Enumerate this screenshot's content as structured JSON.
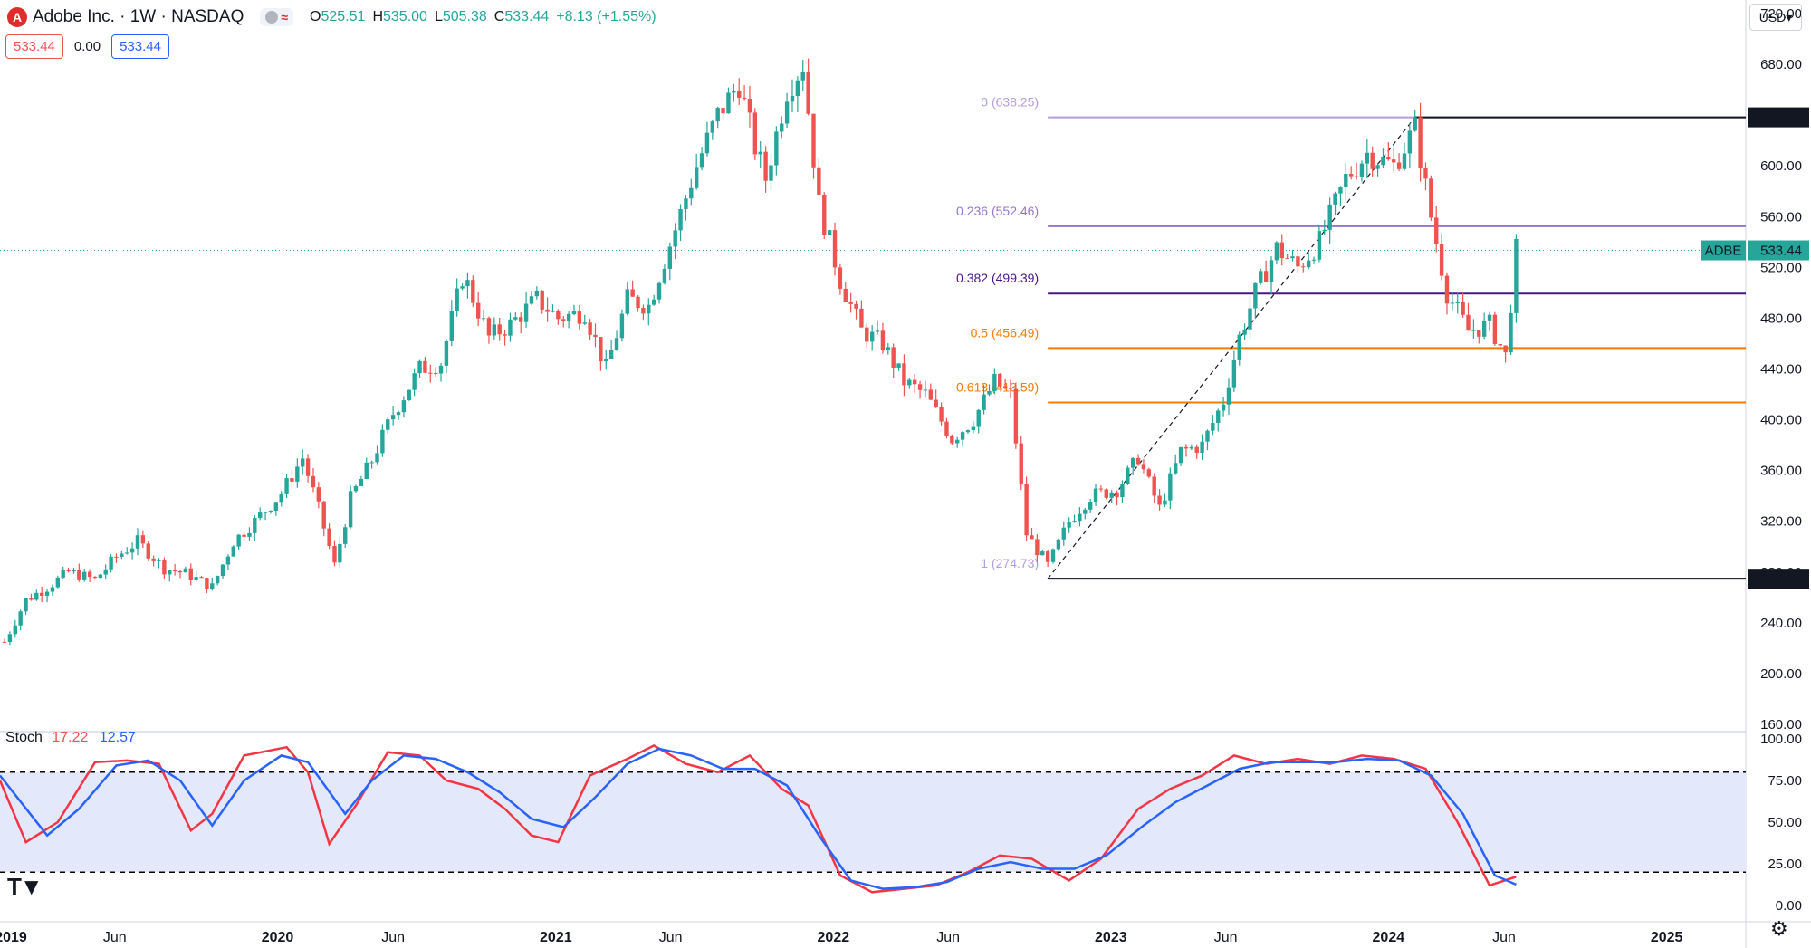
{
  "header": {
    "logo": "A",
    "title": "Adobe Inc. · 1W · NASDAQ",
    "wave": "≈",
    "open_label": "O",
    "open": "525.51",
    "high_label": "H",
    "high": "535.00",
    "low_label": "L",
    "low": "505.38",
    "close_label": "C",
    "close": "533.44",
    "change": "+8.13 (+1.55%)"
  },
  "price_boxes": {
    "left": "533.44",
    "middle": "0.00",
    "right": "533.44"
  },
  "currency": "USD",
  "stoch_legend": {
    "name": "Stoch",
    "k": "17.22",
    "d": "12.57"
  },
  "colors": {
    "up": "#26a69a",
    "down": "#ef5350",
    "k_line": "#f23645",
    "d_line": "#2962ff",
    "stoch_band": "#e3e9fb"
  },
  "icons": {
    "logo": "adobe-logo-icon",
    "settings": "gear-icon",
    "brand": "tradingview-logo-icon"
  },
  "chart_data": [
    {
      "type": "candlestick",
      "symbol_label": "ADBE",
      "last_price": "533.44",
      "ylim": [
        160,
        720
      ],
      "y_ticks": [
        "720.00",
        "680.00",
        "640.00",
        "600.00",
        "560.00",
        "520.00",
        "480.00",
        "440.00",
        "400.00",
        "360.00",
        "320.00",
        "280.00",
        "240.00",
        "200.00",
        "160.00"
      ],
      "x_ticks": [
        "2019",
        "Jun",
        "2020",
        "Jun",
        "2021",
        "Jun",
        "2022",
        "Jun",
        "2023",
        "Jun",
        "2024",
        "Jun",
        "2025"
      ],
      "x_range": [
        "2019-01-01",
        "2025-04-15"
      ],
      "fib_levels": [
        {
          "label": "0 (638.25)",
          "value": 638.25,
          "color": "#b39ddb"
        },
        {
          "label": "0.236 (552.46)",
          "value": 552.46,
          "color": "#9575cd"
        },
        {
          "label": "0.382 (499.39)",
          "value": 499.39,
          "color": "#4a148c"
        },
        {
          "label": "0.5 (456.49)",
          "value": 456.49,
          "color": "#f57c00"
        },
        {
          "label": "0.618 (413.59)",
          "value": 413.59,
          "color": "#f57c00"
        },
        {
          "label": "1 (274.73)",
          "value": 274.73,
          "color": "#b39ddb"
        }
      ],
      "axis_badges": [
        {
          "label": "638.25",
          "value": 638.25
        },
        {
          "label": "274.73",
          "value": 274.73
        }
      ],
      "fib_anchor": {
        "from_date": "2022-10-10",
        "from_value": 274.73,
        "to_date": "2024-02-05",
        "to_value": 638.25
      },
      "weekly_close": [
        [
          "2019-01-07",
          225
        ],
        [
          "2019-02-04",
          258
        ],
        [
          "2019-03-04",
          268
        ],
        [
          "2019-04-01",
          280
        ],
        [
          "2019-05-06",
          274
        ],
        [
          "2019-06-03",
          292
        ],
        [
          "2019-07-01",
          304
        ],
        [
          "2019-08-05",
          283
        ],
        [
          "2019-09-02",
          279
        ],
        [
          "2019-10-07",
          268
        ],
        [
          "2019-11-04",
          304
        ],
        [
          "2019-12-02",
          320
        ],
        [
          "2020-01-06",
          342
        ],
        [
          "2020-02-03",
          370
        ],
        [
          "2020-02-24",
          330
        ],
        [
          "2020-03-16",
          285
        ],
        [
          "2020-04-06",
          338
        ],
        [
          "2020-05-04",
          368
        ],
        [
          "2020-06-01",
          405
        ],
        [
          "2020-07-06",
          440
        ],
        [
          "2020-08-03",
          445
        ],
        [
          "2020-09-01",
          515
        ],
        [
          "2020-10-05",
          465
        ],
        [
          "2020-11-02",
          475
        ],
        [
          "2020-12-07",
          495
        ],
        [
          "2021-01-04",
          480
        ],
        [
          "2021-02-08",
          485
        ],
        [
          "2021-03-08",
          440
        ],
        [
          "2021-04-05",
          495
        ],
        [
          "2021-05-03",
          490
        ],
        [
          "2021-06-07",
          550
        ],
        [
          "2021-07-05",
          600
        ],
        [
          "2021-08-02",
          640
        ],
        [
          "2021-08-30",
          665
        ],
        [
          "2021-09-20",
          615
        ],
        [
          "2021-10-04",
          590
        ],
        [
          "2021-11-01",
          660
        ],
        [
          "2021-11-22",
          680
        ],
        [
          "2021-12-13",
          570
        ],
        [
          "2022-01-10",
          510
        ],
        [
          "2022-02-07",
          470
        ],
        [
          "2022-03-07",
          460
        ],
        [
          "2022-04-04",
          430
        ],
        [
          "2022-05-02",
          420
        ],
        [
          "2022-06-06",
          385
        ],
        [
          "2022-07-04",
          400
        ],
        [
          "2022-08-01",
          430
        ],
        [
          "2022-08-22",
          420
        ],
        [
          "2022-09-12",
          310
        ],
        [
          "2022-10-10",
          285
        ],
        [
          "2022-11-07",
          320
        ],
        [
          "2022-12-05",
          340
        ],
        [
          "2023-01-09",
          345
        ],
        [
          "2023-02-06",
          370
        ],
        [
          "2023-03-06",
          330
        ],
        [
          "2023-04-03",
          375
        ],
        [
          "2023-05-01",
          380
        ],
        [
          "2023-05-29",
          415
        ],
        [
          "2023-06-19",
          465
        ],
        [
          "2023-07-10",
          500
        ],
        [
          "2023-08-07",
          535
        ],
        [
          "2023-09-04",
          520
        ],
        [
          "2023-10-02",
          540
        ],
        [
          "2023-11-06",
          590
        ],
        [
          "2023-12-04",
          610
        ],
        [
          "2024-01-08",
          600
        ],
        [
          "2024-02-05",
          630
        ],
        [
          "2024-02-26",
          560
        ],
        [
          "2024-03-18",
          500
        ],
        [
          "2024-04-15",
          470
        ],
        [
          "2024-05-13",
          475
        ],
        [
          "2024-06-03",
          450
        ],
        [
          "2024-06-17",
          533.44
        ]
      ]
    },
    {
      "type": "line",
      "title": "Stoch",
      "ylim": [
        0,
        100
      ],
      "y_ticks": [
        "100.00",
        "75.00",
        "50.00",
        "25.00",
        "0.00"
      ],
      "band": [
        20,
        80
      ],
      "series": [
        {
          "name": "17.22",
          "color": "#f23645",
          "points": [
            [
              "2019-01-01",
              75
            ],
            [
              "2019-02-04",
              38
            ],
            [
              "2019-03-18",
              50
            ],
            [
              "2019-05-06",
              86
            ],
            [
              "2019-06-17",
              87
            ],
            [
              "2019-07-29",
              85
            ],
            [
              "2019-09-09",
              45
            ],
            [
              "2019-10-07",
              55
            ],
            [
              "2019-11-18",
              90
            ],
            [
              "2020-01-13",
              95
            ],
            [
              "2020-02-10",
              80
            ],
            [
              "2020-03-09",
              37
            ],
            [
              "2020-04-13",
              60
            ],
            [
              "2020-05-25",
              92
            ],
            [
              "2020-07-06",
              90
            ],
            [
              "2020-08-10",
              75
            ],
            [
              "2020-09-21",
              70
            ],
            [
              "2020-10-26",
              58
            ],
            [
              "2020-11-30",
              42
            ],
            [
              "2021-01-04",
              38
            ],
            [
              "2021-02-15",
              78
            ],
            [
              "2021-04-05",
              88
            ],
            [
              "2021-05-10",
              96
            ],
            [
              "2021-06-21",
              85
            ],
            [
              "2021-08-02",
              80
            ],
            [
              "2021-09-13",
              90
            ],
            [
              "2021-10-25",
              70
            ],
            [
              "2021-11-29",
              60
            ],
            [
              "2022-01-10",
              18
            ],
            [
              "2022-02-21",
              8
            ],
            [
              "2022-04-04",
              10
            ],
            [
              "2022-05-16",
              12
            ],
            [
              "2022-06-27",
              20
            ],
            [
              "2022-08-08",
              30
            ],
            [
              "2022-09-19",
              28
            ],
            [
              "2022-11-07",
              15
            ],
            [
              "2022-12-19",
              28
            ],
            [
              "2023-02-06",
              58
            ],
            [
              "2023-03-20",
              70
            ],
            [
              "2023-05-01",
              78
            ],
            [
              "2023-06-12",
              90
            ],
            [
              "2023-07-24",
              85
            ],
            [
              "2023-09-04",
              88
            ],
            [
              "2023-10-16",
              85
            ],
            [
              "2023-11-27",
              90
            ],
            [
              "2024-01-08",
              88
            ],
            [
              "2024-02-19",
              82
            ],
            [
              "2024-04-01",
              50
            ],
            [
              "2024-05-13",
              12
            ],
            [
              "2024-06-17",
              17.22
            ]
          ]
        },
        {
          "name": "12.57",
          "color": "#2962ff",
          "points": [
            [
              "2019-01-01",
              78
            ],
            [
              "2019-03-04",
              42
            ],
            [
              "2019-04-15",
              58
            ],
            [
              "2019-06-03",
              84
            ],
            [
              "2019-07-15",
              87
            ],
            [
              "2019-08-26",
              75
            ],
            [
              "2019-10-07",
              48
            ],
            [
              "2019-11-18",
              75
            ],
            [
              "2020-01-06",
              90
            ],
            [
              "2020-02-10",
              86
            ],
            [
              "2020-03-30",
              55
            ],
            [
              "2020-05-04",
              75
            ],
            [
              "2020-06-15",
              90
            ],
            [
              "2020-07-27",
              88
            ],
            [
              "2020-09-07",
              80
            ],
            [
              "2020-10-19",
              68
            ],
            [
              "2020-11-30",
              52
            ],
            [
              "2021-01-11",
              47
            ],
            [
              "2021-02-22",
              65
            ],
            [
              "2021-04-05",
              85
            ],
            [
              "2021-05-17",
              94
            ],
            [
              "2021-06-28",
              90
            ],
            [
              "2021-08-09",
              82
            ],
            [
              "2021-09-20",
              82
            ],
            [
              "2021-11-01",
              72
            ],
            [
              "2021-12-13",
              42
            ],
            [
              "2022-01-24",
              15
            ],
            [
              "2022-03-07",
              10
            ],
            [
              "2022-04-18",
              11
            ],
            [
              "2022-05-30",
              14
            ],
            [
              "2022-07-11",
              22
            ],
            [
              "2022-08-22",
              26
            ],
            [
              "2022-10-03",
              22
            ],
            [
              "2022-11-14",
              22
            ],
            [
              "2022-12-26",
              30
            ],
            [
              "2023-02-13",
              48
            ],
            [
              "2023-03-27",
              62
            ],
            [
              "2023-05-08",
              72
            ],
            [
              "2023-06-19",
              82
            ],
            [
              "2023-07-31",
              86
            ],
            [
              "2023-09-11",
              86
            ],
            [
              "2023-10-23",
              86
            ],
            [
              "2023-12-04",
              88
            ],
            [
              "2024-01-15",
              87
            ],
            [
              "2024-02-26",
              78
            ],
            [
              "2024-04-08",
              55
            ],
            [
              "2024-05-20",
              18
            ],
            [
              "2024-06-17",
              12.57
            ]
          ]
        }
      ]
    }
  ]
}
